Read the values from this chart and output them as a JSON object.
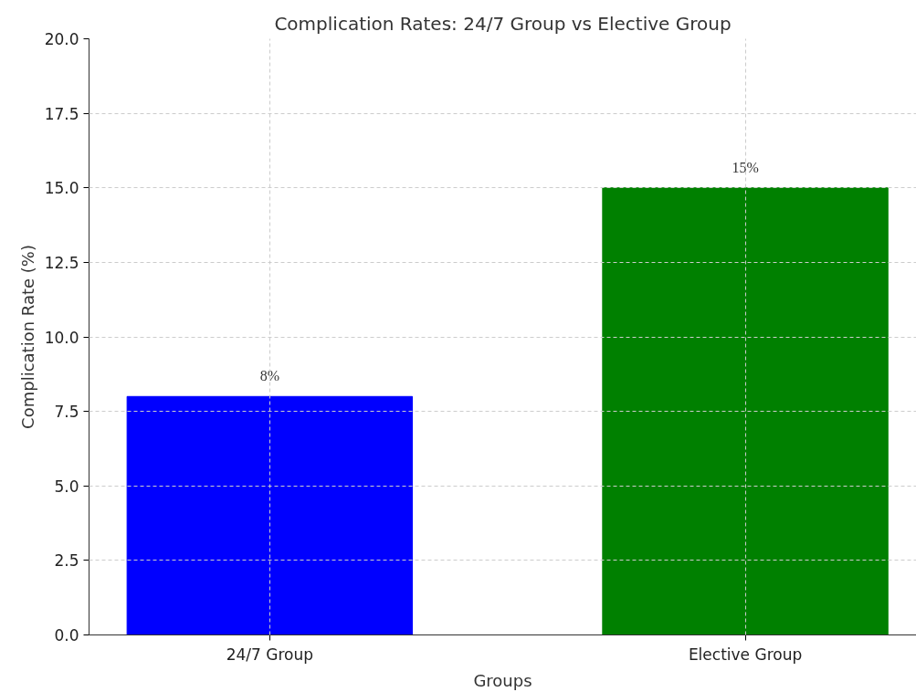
{
  "chart_data": {
    "type": "bar",
    "title": "Complication Rates: 24/7 Group vs Elective Group",
    "xlabel": "Groups",
    "ylabel": "Complication Rate (%)",
    "categories": [
      "24/7 Group",
      "Elective Group"
    ],
    "values": [
      8,
      15
    ],
    "colors": [
      "#0000ff",
      "#008000"
    ],
    "value_labels": [
      "8%",
      "15%"
    ],
    "ylim": [
      0,
      20
    ],
    "yticks": [
      {
        "value": 0,
        "label": "0.0"
      },
      {
        "value": 2.5,
        "label": "2.5"
      },
      {
        "value": 5,
        "label": "5.0"
      },
      {
        "value": 7.5,
        "label": "7.5"
      },
      {
        "value": 10,
        "label": "10.0"
      },
      {
        "value": 12.5,
        "label": "12.5"
      },
      {
        "value": 15,
        "label": "15.0"
      },
      {
        "value": 17.5,
        "label": "17.5"
      },
      {
        "value": 20,
        "label": "20.0"
      }
    ],
    "grid": true
  }
}
